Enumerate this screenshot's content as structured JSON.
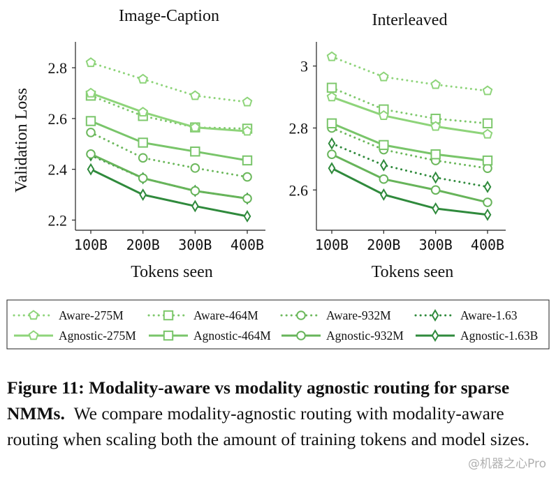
{
  "colors": {
    "aware_275M": "#8ed47a",
    "aware_464M": "#7ec86c",
    "aware_932M": "#6cb85c",
    "aware_1_63": "#2f8a3c",
    "agnostic_275M": "#8ed47a",
    "agnostic_464M": "#79c56a",
    "agnostic_932M": "#67b45a",
    "agnostic_1_63B": "#2f8a3c"
  },
  "legend": {
    "entries": [
      {
        "label": "Aware-275M",
        "marker": "pentagon",
        "dashed": true,
        "color_key": "aware_275M"
      },
      {
        "label": "Aware-464M",
        "marker": "square",
        "dashed": true,
        "color_key": "aware_464M"
      },
      {
        "label": "Aware-932M",
        "marker": "circle",
        "dashed": true,
        "color_key": "aware_932M"
      },
      {
        "label": "Aware-1.63",
        "marker": "diamond",
        "dashed": true,
        "color_key": "aware_1_63"
      },
      {
        "label": "Agnostic-275M",
        "marker": "pentagon",
        "dashed": false,
        "color_key": "agnostic_275M"
      },
      {
        "label": "Agnostic-464M",
        "marker": "square",
        "dashed": false,
        "color_key": "agnostic_464M"
      },
      {
        "label": "Agnostic-932M",
        "marker": "circle",
        "dashed": false,
        "color_key": "agnostic_932M"
      },
      {
        "label": "Agnostic-1.63B",
        "marker": "diamond",
        "dashed": false,
        "color_key": "agnostic_1_63B"
      }
    ]
  },
  "chart_data": [
    {
      "type": "line",
      "title": "Image-Caption",
      "xlabel": "Tokens seen",
      "ylabel": "Validation Loss",
      "x": [
        "100B",
        "200B",
        "300B",
        "400B"
      ],
      "ylim": [
        2.16,
        2.88
      ],
      "yticks": [
        2.2,
        2.4,
        2.6,
        2.8
      ],
      "ytick_labels": [
        "2.2",
        "2.4",
        "2.6",
        "2.8"
      ],
      "grid": false,
      "legend_position": "below",
      "series": [
        {
          "name": "Aware-275M",
          "values": [
            2.82,
            2.755,
            2.69,
            2.665
          ]
        },
        {
          "name": "Aware-464M",
          "values": [
            2.69,
            2.61,
            2.565,
            2.56
          ]
        },
        {
          "name": "Aware-932M",
          "values": [
            2.545,
            2.445,
            2.405,
            2.37
          ]
        },
        {
          "name": "Aware-1.63",
          "values": [
            2.455,
            2.365,
            2.315,
            2.285
          ]
        },
        {
          "name": "Agnostic-275M",
          "values": [
            2.7,
            2.625,
            2.565,
            2.55
          ]
        },
        {
          "name": "Agnostic-464M",
          "values": [
            2.59,
            2.505,
            2.47,
            2.435
          ]
        },
        {
          "name": "Agnostic-932M",
          "values": [
            2.46,
            2.365,
            2.315,
            2.285
          ]
        },
        {
          "name": "Agnostic-1.63B",
          "values": [
            2.4,
            2.3,
            2.255,
            2.215
          ]
        }
      ]
    },
    {
      "type": "line",
      "title": "Interleaved",
      "xlabel": "Tokens seen",
      "ylabel": "",
      "x": [
        "100B",
        "200B",
        "300B",
        "400B"
      ],
      "ylim": [
        2.47,
        3.06
      ],
      "yticks": [
        2.6,
        2.8,
        3.0
      ],
      "ytick_labels": [
        "2.6",
        "2.8",
        "3"
      ],
      "grid": false,
      "series": [
        {
          "name": "Aware-275M",
          "values": [
            3.03,
            2.965,
            2.94,
            2.92
          ]
        },
        {
          "name": "Aware-464M",
          "values": [
            2.93,
            2.86,
            2.83,
            2.815
          ]
        },
        {
          "name": "Aware-932M",
          "values": [
            2.8,
            2.73,
            2.695,
            2.67
          ]
        },
        {
          "name": "Aware-1.63",
          "values": [
            2.75,
            2.68,
            2.64,
            2.61
          ]
        },
        {
          "name": "Agnostic-275M",
          "values": [
            2.9,
            2.84,
            2.805,
            2.78
          ]
        },
        {
          "name": "Agnostic-464M",
          "values": [
            2.815,
            2.745,
            2.715,
            2.695
          ]
        },
        {
          "name": "Agnostic-932M",
          "values": [
            2.715,
            2.635,
            2.6,
            2.56
          ]
        },
        {
          "name": "Agnostic-1.63B",
          "values": [
            2.67,
            2.585,
            2.54,
            2.52
          ]
        }
      ]
    }
  ],
  "caption": {
    "label": "Figure 11:",
    "title": "Modality-aware vs modality agnostic routing for sparse NMMs.",
    "body": "We compare modality-agnostic routing with modality-aware routing when scaling both the amount of training tokens and model sizes."
  },
  "watermark": "@机器之心Pro"
}
